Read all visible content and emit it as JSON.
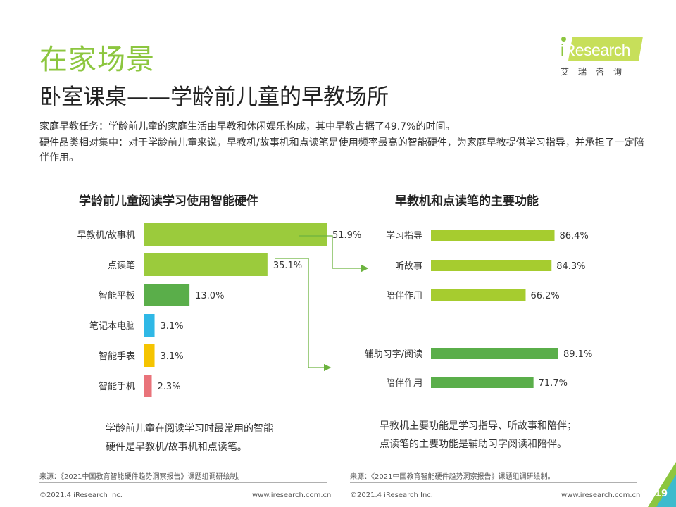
{
  "header": {
    "title": "在家场景",
    "subtitle": "卧室课桌——学龄前儿童的早教场所",
    "desc1": "家庭早教任务：学龄前儿童的家庭生活由早教和休闲娱乐构成，其中早教占据了49.7%的时间。",
    "desc2": "硬件品类相对集中：对于学龄前儿童来说，早教机/故事机和点读笔是使用频率最高的智能硬件，为家庭早教提供学习指导，并承担了一定陪伴作用。"
  },
  "logo": {
    "i": "i",
    "name": "Research",
    "cn": "艾瑞咨询"
  },
  "chart_data": [
    {
      "type": "bar",
      "orientation": "horizontal",
      "title": "学龄前儿童阅读学习使用智能硬件",
      "categories": [
        "早教机/故事机",
        "点读笔",
        "智能平板",
        "笔记本电脑",
        "智能手表",
        "智能手机"
      ],
      "values": [
        51.9,
        35.1,
        13.0,
        3.1,
        3.1,
        2.3
      ],
      "labels": [
        "51.9%",
        "35.1%",
        "13.0%",
        "3.1%",
        "3.1%",
        "2.3%"
      ],
      "colors": [
        "#9bcb3c",
        "#9bcb3c",
        "#5aae4a",
        "#2fb8e6",
        "#f5c400",
        "#e9737a"
      ],
      "unit": "%"
    },
    {
      "type": "bar",
      "orientation": "horizontal",
      "title": "早教机和点读笔的主要功能",
      "groups": [
        {
          "categories": [
            "学习指导",
            "听故事",
            "陪伴作用"
          ],
          "values": [
            86.4,
            84.3,
            66.2
          ],
          "labels": [
            "86.4%",
            "84.3%",
            "66.2%"
          ],
          "color": "#a6cc2f"
        },
        {
          "categories": [
            "辅助习字/阅读",
            "陪伴作用"
          ],
          "values": [
            89.1,
            71.7
          ],
          "labels": [
            "89.1%",
            "71.7%"
          ],
          "color": "#5aae4a"
        }
      ],
      "unit": "%"
    }
  ],
  "notes": {
    "left": "学龄前儿童在阅读学习时最常用的智能硬件是早教机/故事机和点读笔。",
    "right_line1": "早教机主要功能是学习指导、听故事和陪伴；",
    "right_line2": "点读笔的主要功能是辅助习字阅读和陪伴。"
  },
  "footer": {
    "source": "来源：《2021中国教育智能硬件趋势洞察报告》课题组调研绘制。",
    "copyright": "©2021.4 iResearch Inc.",
    "url": "www.iresearch.com.cn",
    "page": "19"
  },
  "colors": {
    "accent": "#8cc63f",
    "arrow": "#6cb33f"
  }
}
